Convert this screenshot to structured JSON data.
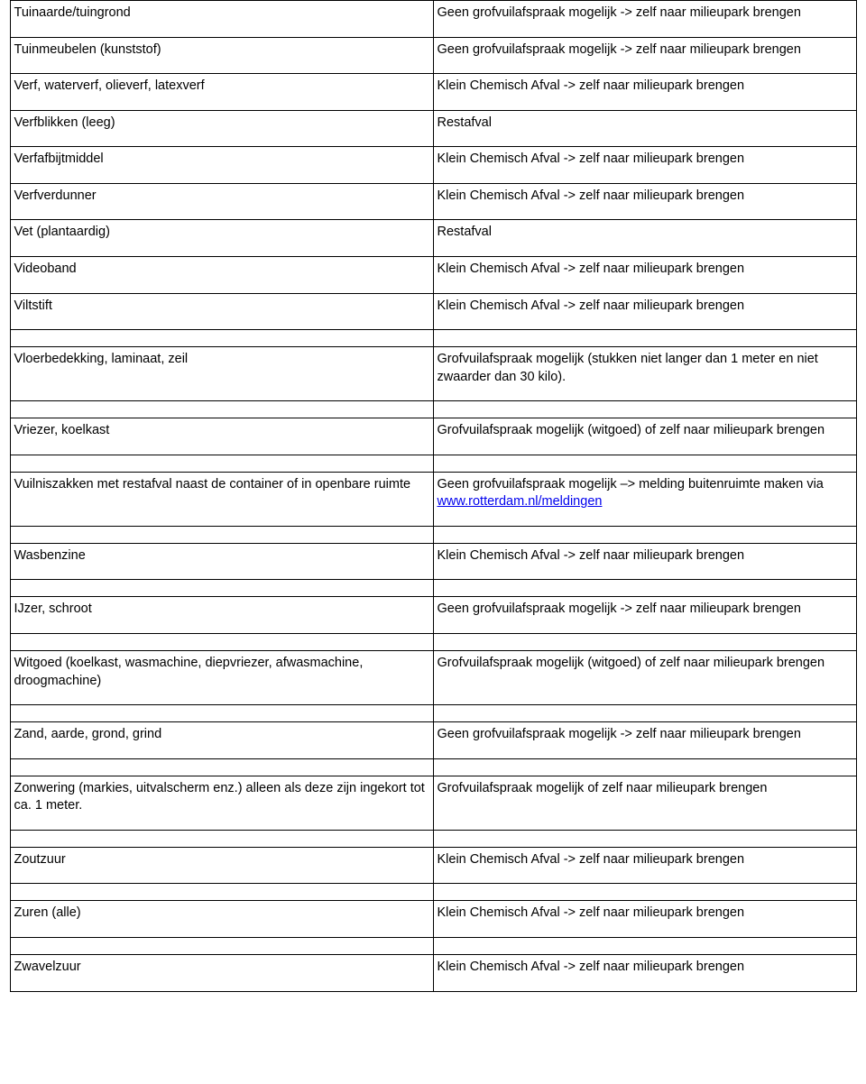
{
  "rows": [
    {
      "item": "Tuinaarde/tuingrond",
      "instruction": "Geen grofvuilafspraak mogelijk -> zelf naar milieupark brengen"
    },
    {
      "item": "Tuinmeubelen (kunststof)",
      "instruction": "Geen grofvuilafspraak mogelijk -> zelf naar milieupark brengen"
    },
    {
      "item": "Verf, waterverf, olieverf, latexverf",
      "instruction": "Klein Chemisch Afval -> zelf naar milieupark brengen"
    },
    {
      "item": "Verfblikken (leeg)",
      "instruction": "Restafval"
    },
    {
      "item": "Verfafbijtmiddel",
      "instruction": "Klein Chemisch Afval -> zelf naar milieupark brengen"
    },
    {
      "item": "Verfverdunner",
      "instruction": "Klein Chemisch Afval -> zelf naar milieupark brengen"
    },
    {
      "item": "Vet (plantaardig)",
      "instruction": "Restafval"
    },
    {
      "item": "Videoband",
      "instruction": "Klein Chemisch Afval -> zelf naar milieupark brengen"
    },
    {
      "item": "Viltstift",
      "instruction": "Klein Chemisch Afval -> zelf naar milieupark brengen"
    },
    {
      "item": "Vloerbedekking, laminaat, zeil",
      "instruction": "Grofvuilafspraak mogelijk (stukken niet langer dan 1 meter en niet zwaarder dan 30 kilo)."
    },
    {
      "item": "Vriezer, koelkast",
      "instruction": "Grofvuilafspraak mogelijk (witgoed) of zelf naar milieupark brengen"
    },
    {
      "item": "Vuilniszakken met restafval naast de container of in openbare ruimte",
      "instruction_pre": "Geen grofvuilafspraak mogelijk –> melding buitenruimte maken via ",
      "link_text": "www.rotterdam.nl/meldingen",
      "has_link": true
    },
    {
      "item": "Wasbenzine",
      "instruction": "Klein Chemisch Afval -> zelf naar milieupark brengen"
    },
    {
      "item": "IJzer, schroot",
      "instruction": "Geen grofvuilafspraak mogelijk -> zelf naar milieupark brengen"
    },
    {
      "item": "Witgoed (koelkast, wasmachine, diepvriezer, afwasmachine, droogmachine)",
      "instruction": "Grofvuilafspraak mogelijk (witgoed) of zelf naar milieupark brengen"
    },
    {
      "item": "Zand, aarde, grond, grind",
      "instruction": "Geen grofvuilafspraak mogelijk -> zelf naar milieupark brengen"
    },
    {
      "item": "Zonwering (markies, uitvalscherm enz.) alleen als deze zijn ingekort tot ca. 1 meter.",
      "instruction": "Grofvuilafspraak mogelijk of zelf naar milieupark brengen"
    },
    {
      "item": "Zoutzuur",
      "instruction": "Klein Chemisch Afval -> zelf naar milieupark brengen"
    },
    {
      "item": "Zuren (alle)",
      "instruction": "Klein Chemisch Afval -> zelf naar milieupark brengen"
    },
    {
      "item": "Zwavelzuur",
      "instruction": "Klein Chemisch Afval -> zelf naar milieupark brengen"
    }
  ],
  "gap_after_indices": [
    8,
    9,
    10,
    11,
    12,
    13,
    14,
    15,
    16,
    17,
    18
  ]
}
